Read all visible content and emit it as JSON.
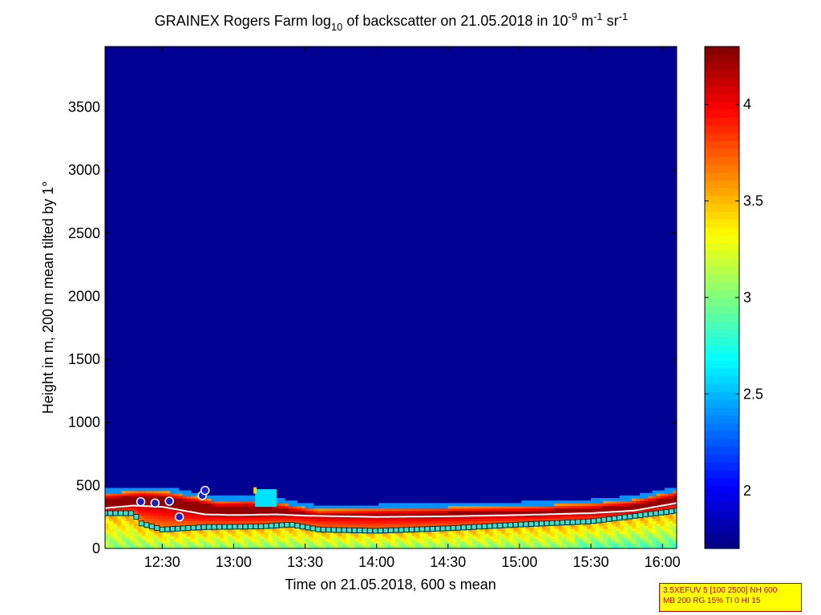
{
  "chart_data": {
    "type": "heatmap",
    "title": {
      "prefix": "GRAINEX Rogers Farm log",
      "sub": "10",
      "middle": " of backscatter on 21.05.2018 in 10",
      "exp1": "-9",
      "unit1": " m",
      "exp2": "-1",
      "unit2": " sr",
      "exp3": "-1"
    },
    "xlabel": "Time on 21.05.2018, 600 s mean",
    "ylabel": "Height in m, 200 m mean tilted by 1°",
    "x_ticks": [
      "12:30",
      "13:00",
      "13:30",
      "14:00",
      "14:30",
      "15:00",
      "15:30",
      "16:00"
    ],
    "x_tick_hours": [
      12.5,
      13.0,
      13.5,
      14.0,
      14.5,
      15.0,
      15.5,
      16.0
    ],
    "xlim_hours": [
      12.1,
      16.1
    ],
    "y_ticks": [
      0,
      500,
      1000,
      1500,
      2000,
      2500,
      3000,
      3500
    ],
    "ylim": [
      0,
      3980
    ],
    "colorbar": {
      "ticks": [
        "2",
        "2.5",
        "3",
        "3.5",
        "4"
      ],
      "tick_values": [
        2,
        2.5,
        3,
        3.5,
        4
      ],
      "range": [
        1.7,
        4.3
      ],
      "colormap": "jet"
    },
    "background_value": 1.75,
    "layer_top_m": [
      {
        "t": 12.1,
        "h": 440
      },
      {
        "t": 12.35,
        "h": 460
      },
      {
        "t": 12.55,
        "h": 450
      },
      {
        "t": 12.7,
        "h": 420
      },
      {
        "t": 12.9,
        "h": 380
      },
      {
        "t": 13.1,
        "h": 390
      },
      {
        "t": 13.35,
        "h": 360
      },
      {
        "t": 13.6,
        "h": 310
      },
      {
        "t": 14.0,
        "h": 320
      },
      {
        "t": 14.5,
        "h": 330
      },
      {
        "t": 15.0,
        "h": 340
      },
      {
        "t": 15.5,
        "h": 360
      },
      {
        "t": 15.8,
        "h": 390
      },
      {
        "t": 16.1,
        "h": 460
      }
    ],
    "mixing_layer_m": [
      {
        "t": 12.1,
        "h": 320
      },
      {
        "t": 12.3,
        "h": 340
      },
      {
        "t": 12.5,
        "h": 330
      },
      {
        "t": 12.65,
        "h": 300
      },
      {
        "t": 12.8,
        "h": 270
      },
      {
        "t": 13.0,
        "h": 265
      },
      {
        "t": 13.3,
        "h": 270
      },
      {
        "t": 13.5,
        "h": 260
      },
      {
        "t": 14.0,
        "h": 250
      },
      {
        "t": 14.5,
        "h": 255
      },
      {
        "t": 15.0,
        "h": 265
      },
      {
        "t": 15.5,
        "h": 280
      },
      {
        "t": 15.8,
        "h": 300
      },
      {
        "t": 16.1,
        "h": 360
      }
    ],
    "lower_layer_m": [
      {
        "t": 12.1,
        "h": 280
      },
      {
        "t": 12.3,
        "h": 280
      },
      {
        "t": 12.35,
        "h": 200
      },
      {
        "t": 12.5,
        "h": 150
      },
      {
        "t": 12.8,
        "h": 170
      },
      {
        "t": 13.2,
        "h": 175
      },
      {
        "t": 13.4,
        "h": 190
      },
      {
        "t": 13.6,
        "h": 150
      },
      {
        "t": 14.0,
        "h": 140
      },
      {
        "t": 14.5,
        "h": 160
      },
      {
        "t": 15.0,
        "h": 190
      },
      {
        "t": 15.5,
        "h": 215
      },
      {
        "t": 16.1,
        "h": 300
      }
    ],
    "cloud_markers_m": [
      {
        "t": 12.35,
        "h": 370
      },
      {
        "t": 12.45,
        "h": 360
      },
      {
        "t": 12.55,
        "h": 375
      },
      {
        "t": 12.62,
        "h": 250
      },
      {
        "t": 12.78,
        "h": 420
      },
      {
        "t": 12.8,
        "h": 460
      }
    ],
    "cyan_patch": {
      "t0": 13.15,
      "t1": 13.3,
      "h0": 330,
      "h1": 470
    },
    "yellow_marker": {
      "t": 13.15,
      "h": 460
    }
  },
  "info_box": {
    "line1": "3.5XEFUV 5 [100 2500] NH 600",
    "line2": "MB 200 RG 15% TI 0 HI 15"
  }
}
